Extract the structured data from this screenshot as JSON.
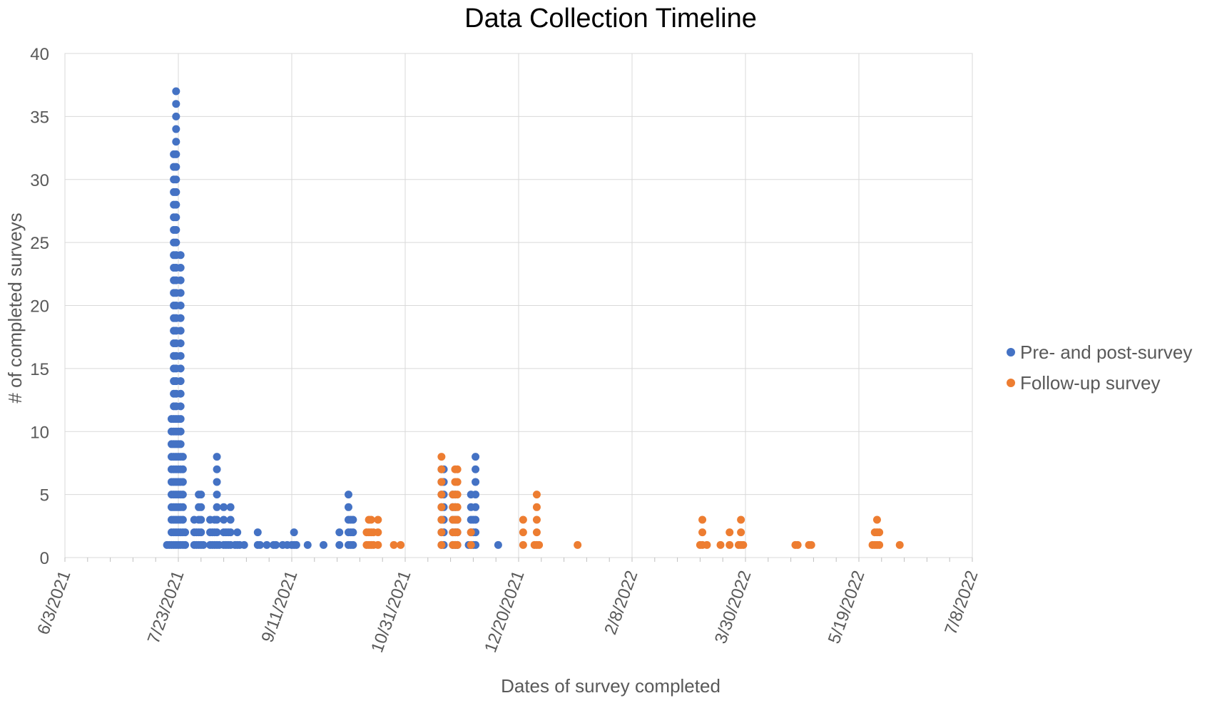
{
  "chart_data": {
    "type": "scatter",
    "title": "Data Collection Timeline",
    "xlabel": "Dates of survey completed",
    "ylabel": "# of completed surveys",
    "x_axis": {
      "type": "date",
      "range": [
        "6/3/2021",
        "7/8/2022"
      ],
      "tick_labels": [
        "6/3/2021",
        "7/23/2021",
        "9/11/2021",
        "10/31/2021",
        "12/20/2021",
        "2/8/2022",
        "3/30/2022",
        "5/19/2022",
        "7/8/2022"
      ]
    },
    "y_axis": {
      "range": [
        0,
        40
      ],
      "tick_labels": [
        "0",
        "5",
        "10",
        "15",
        "20",
        "25",
        "30",
        "35",
        "40"
      ]
    },
    "grid": true,
    "legend_position": "right",
    "series": [
      {
        "name": "Pre- and post-survey",
        "color": "#4472C4",
        "points": [
          {
            "x": "2021-07-18",
            "y": 1
          },
          {
            "x": "2021-07-19",
            "y": 1
          },
          {
            "x": "2021-07-20",
            "y": 11
          },
          {
            "x": "2021-07-21",
            "y": 32
          },
          {
            "x": "2021-07-22",
            "y": 37
          },
          {
            "x": "2021-07-23",
            "y": 11
          },
          {
            "x": "2021-07-24",
            "y": 24
          },
          {
            "x": "2021-07-25",
            "y": 8
          },
          {
            "x": "2021-07-26",
            "y": 2
          },
          {
            "x": "2021-07-30",
            "y": 3
          },
          {
            "x": "2021-07-31",
            "y": 2
          },
          {
            "x": "2021-08-01",
            "y": 5
          },
          {
            "x": "2021-08-02",
            "y": 5
          },
          {
            "x": "2021-08-03",
            "y": 1
          },
          {
            "x": "2021-08-06",
            "y": 3
          },
          {
            "x": "2021-08-07",
            "y": 2
          },
          {
            "x": "2021-08-08",
            "y": 3
          },
          {
            "x": "2021-08-09",
            "y": 8
          },
          {
            "x": "2021-08-10",
            "y": 1
          },
          {
            "x": "2021-08-12",
            "y": 4
          },
          {
            "x": "2021-08-13",
            "y": 2
          },
          {
            "x": "2021-08-14",
            "y": 2
          },
          {
            "x": "2021-08-15",
            "y": 4
          },
          {
            "x": "2021-08-17",
            "y": 1
          },
          {
            "x": "2021-08-18",
            "y": 2
          },
          {
            "x": "2021-08-19",
            "y": 1
          },
          {
            "x": "2021-08-21",
            "y": 1
          },
          {
            "x": "2021-08-27",
            "y": 2
          },
          {
            "x": "2021-08-28",
            "y": 1
          },
          {
            "x": "2021-08-31",
            "y": 1
          },
          {
            "x": "2021-09-03",
            "y": 1
          },
          {
            "x": "2021-09-04",
            "y": 1
          },
          {
            "x": "2021-09-07",
            "y": 1
          },
          {
            "x": "2021-09-09",
            "y": 1
          },
          {
            "x": "2021-09-11",
            "y": 1
          },
          {
            "x": "2021-09-12",
            "y": 2
          },
          {
            "x": "2021-09-13",
            "y": 1
          },
          {
            "x": "2021-09-18",
            "y": 1
          },
          {
            "x": "2021-09-25",
            "y": 1
          },
          {
            "x": "2021-10-02",
            "y": 2
          },
          {
            "x": "2021-10-06",
            "y": 5
          },
          {
            "x": "2021-10-07",
            "y": 3
          },
          {
            "x": "2021-10-08",
            "y": 3
          },
          {
            "x": "2021-11-16",
            "y": 7
          },
          {
            "x": "2021-11-17",
            "y": 7
          },
          {
            "x": "2021-11-21",
            "y": 5
          },
          {
            "x": "2021-11-22",
            "y": 5
          },
          {
            "x": "2021-11-23",
            "y": 3
          },
          {
            "x": "2021-11-28",
            "y": 1
          },
          {
            "x": "2021-11-29",
            "y": 5
          },
          {
            "x": "2021-11-30",
            "y": 3
          },
          {
            "x": "2021-12-01",
            "y": 8
          },
          {
            "x": "2021-12-11",
            "y": 1
          }
        ]
      },
      {
        "name": "Follow-up survey",
        "color": "#ED7D31",
        "points": [
          {
            "x": "2021-10-14",
            "y": 2
          },
          {
            "x": "2021-10-15",
            "y": 3
          },
          {
            "x": "2021-10-16",
            "y": 3
          },
          {
            "x": "2021-10-17",
            "y": 2
          },
          {
            "x": "2021-10-19",
            "y": 3
          },
          {
            "x": "2021-10-26",
            "y": 1
          },
          {
            "x": "2021-10-29",
            "y": 1
          },
          {
            "x": "2021-11-16",
            "y": 8
          },
          {
            "x": "2021-11-21",
            "y": 5
          },
          {
            "x": "2021-11-22",
            "y": 7
          },
          {
            "x": "2021-11-23",
            "y": 7
          },
          {
            "x": "2021-11-29",
            "y": 2
          },
          {
            "x": "2021-12-22",
            "y": 3
          },
          {
            "x": "2021-12-27",
            "y": 1
          },
          {
            "x": "2021-12-28",
            "y": 5
          },
          {
            "x": "2021-12-29",
            "y": 1
          },
          {
            "x": "2022-01-15",
            "y": 1
          },
          {
            "x": "2022-03-10",
            "y": 1
          },
          {
            "x": "2022-03-11",
            "y": 3
          },
          {
            "x": "2022-03-13",
            "y": 1
          },
          {
            "x": "2022-03-19",
            "y": 1
          },
          {
            "x": "2022-03-23",
            "y": 2
          },
          {
            "x": "2022-03-27",
            "y": 1
          },
          {
            "x": "2022-03-28",
            "y": 3
          },
          {
            "x": "2022-03-29",
            "y": 1
          },
          {
            "x": "2022-04-21",
            "y": 1
          },
          {
            "x": "2022-04-22",
            "y": 1
          },
          {
            "x": "2022-04-27",
            "y": 1
          },
          {
            "x": "2022-04-28",
            "y": 1
          },
          {
            "x": "2022-05-25",
            "y": 1
          },
          {
            "x": "2022-05-26",
            "y": 2
          },
          {
            "x": "2022-05-27",
            "y": 3
          },
          {
            "x": "2022-05-28",
            "y": 2
          },
          {
            "x": "2022-06-06",
            "y": 1
          }
        ]
      }
    ]
  }
}
